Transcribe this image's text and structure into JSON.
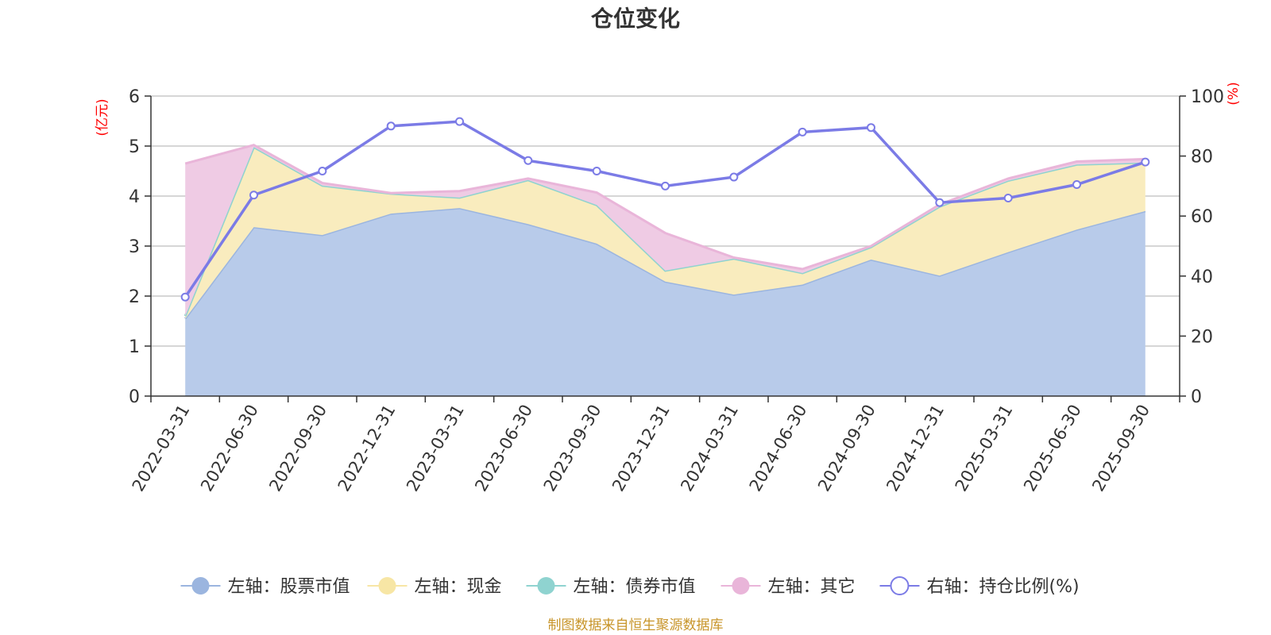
{
  "chart_data": {
    "type": "area",
    "title": "仓位变化",
    "source": "制图数据来自恒生聚源数据库",
    "left_unit": "(亿元)",
    "right_unit": "(%)",
    "left_ylim": [
      0,
      6
    ],
    "left_ticks": [
      0,
      1,
      2,
      3,
      4,
      5,
      6
    ],
    "right_ylim": [
      0,
      100
    ],
    "right_ticks": [
      0,
      20,
      40,
      60,
      80,
      100
    ],
    "grid": true,
    "legend_position": "bottom",
    "categories": [
      "2022-03-31",
      "2022-06-30",
      "2022-09-30",
      "2022-12-31",
      "2023-03-31",
      "2023-06-30",
      "2023-09-30",
      "2023-12-31",
      "2024-03-31",
      "2024-06-30",
      "2024-09-30",
      "2024-12-31",
      "2025-03-31",
      "2025-06-30",
      "2025-09-30"
    ],
    "series": [
      {
        "name": "左轴：股票市值",
        "axis": "left",
        "kind": "area",
        "color": "#9bb5df",
        "fill": "#b8cbea",
        "values": [
          1.55,
          3.38,
          3.22,
          3.65,
          3.76,
          3.44,
          3.05,
          2.29,
          2.03,
          2.23,
          2.73,
          2.41,
          2.88,
          3.33,
          3.7
        ]
      },
      {
        "name": "左轴：现金",
        "axis": "left",
        "kind": "area",
        "color": "#f7e6a5",
        "fill": "#f9ecbe",
        "values": [
          0.05,
          1.6,
          0.99,
          0.4,
          0.21,
          0.88,
          0.77,
          0.22,
          0.72,
          0.23,
          0.25,
          1.38,
          1.43,
          1.3,
          0.97
        ]
      },
      {
        "name": "左轴：债券市值",
        "axis": "left",
        "kind": "area",
        "color": "#8fd3d0",
        "fill": "#a6dcd9",
        "values": [
          0,
          0,
          0,
          0,
          0,
          0,
          0,
          0,
          0,
          0,
          0,
          0,
          0,
          0,
          0
        ]
      },
      {
        "name": "左轴：其它",
        "axis": "left",
        "kind": "area",
        "color": "#e9b5d9",
        "fill": "#efcbe4",
        "values": [
          3.05,
          0.04,
          0.05,
          0.01,
          0.13,
          0.03,
          0.25,
          0.75,
          0.02,
          0.08,
          0.02,
          0.04,
          0.04,
          0.06,
          0.07
        ]
      },
      {
        "name": "右轴：持仓比例(%)",
        "axis": "right",
        "kind": "line",
        "color": "#7b7be6",
        "values": [
          33,
          67,
          75,
          90,
          91.5,
          78.5,
          75,
          70,
          73,
          88,
          89.5,
          64.5,
          66,
          70.5,
          78
        ]
      }
    ]
  }
}
